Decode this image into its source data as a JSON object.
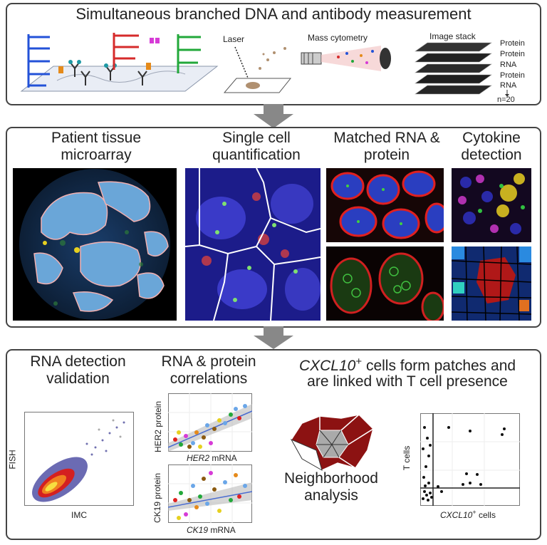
{
  "top": {
    "title": "Simultaneous branched DNA and antibody measurement",
    "laser": "Laser",
    "mass_cytometry": "Mass cytometry",
    "image_stack": "Image stack",
    "stack_layers": [
      "Protein",
      "Protein",
      "RNA",
      "Protein",
      "RNA"
    ],
    "stack_count": "n=20"
  },
  "middle": {
    "tissue_title": "Patient tissue microarray",
    "single_cell_title": "Single cell quantification",
    "matched_title": "Matched RNA & protein",
    "cytokine_title": "Cytokine detection"
  },
  "bottom": {
    "rna_validation_title": "RNA detection validation",
    "fish_label": "FISH",
    "imc_label": "IMC",
    "correlations_title": "RNA & protein correlations",
    "her2_protein": "HER2 protein",
    "her2_mrna_gene": "HER2",
    "her2_mrna_suffix": " mRNA",
    "ck19_protein": "CK19 protein",
    "ck19_mrna_gene": "CK19",
    "ck19_mrna_suffix": " mRNA",
    "cxcl_gene": "CXCL10",
    "cxcl_sup": "+",
    "cxcl_line1_rest": " cells form patches and",
    "cxcl_line2": "are linked with T cell presence",
    "neighborhood": "Neighborhood analysis",
    "t_cells": "T cells",
    "cxcl_cells_gene": "CXCL10",
    "cxcl_cells_sup": "+",
    "cxcl_cells_suffix": " cells"
  }
}
